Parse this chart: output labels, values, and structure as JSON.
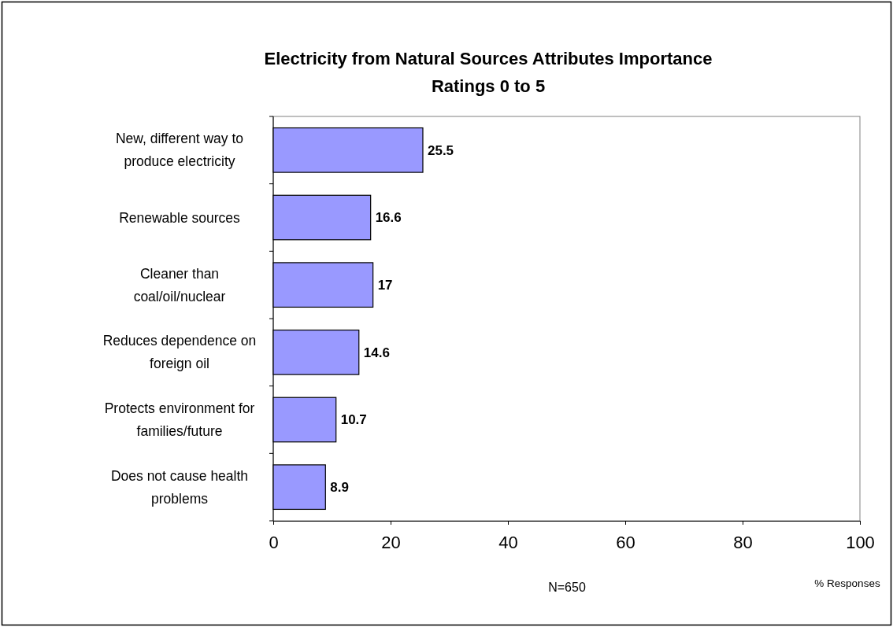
{
  "chart_data": {
    "type": "bar",
    "orientation": "horizontal",
    "title": "Electricity from Natural Sources Attributes Importance",
    "subtitle": "Ratings 0 to 5",
    "categories": [
      "New, different way to produce electricity",
      "Renewable sources",
      "Cleaner than coal/oil/nuclear",
      "Reduces dependence on foreign oil",
      "Protects environment for families/future",
      "Does not cause health problems"
    ],
    "values": [
      25.5,
      16.6,
      17,
      14.6,
      10.7,
      8.9
    ],
    "color": "#9999ff",
    "xlim": [
      0,
      100
    ],
    "xticks": [
      0,
      20,
      40,
      60,
      80,
      100
    ],
    "xlabel": "% Responses",
    "data_labels": true,
    "grid": false,
    "annotations": [
      "N=650"
    ]
  }
}
